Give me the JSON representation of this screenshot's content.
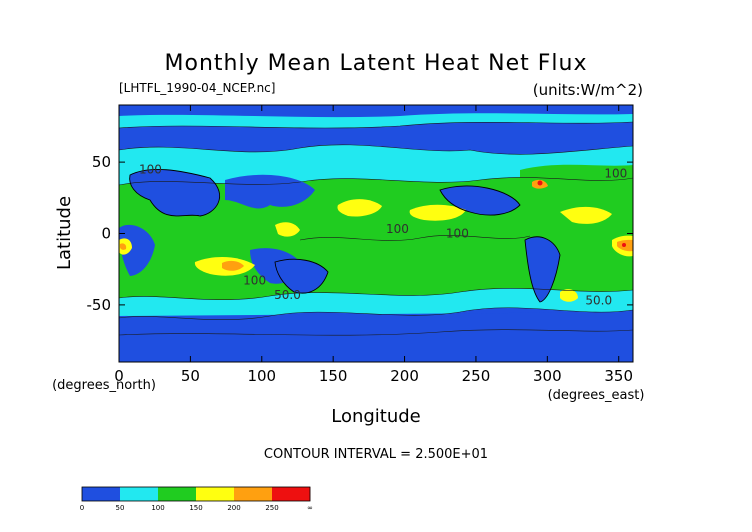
{
  "chart_data": {
    "type": "heatmap",
    "title": "Monthly Mean Latent Heat Net Flux",
    "file_label": "[LHTFL_1990-04_NCEP.nc]",
    "units_label": "(units:W/m^2)",
    "xlabel": "Longitude",
    "ylabel": "Latitude",
    "x_unit_label": "(degrees_east)",
    "y_unit_label": "(degrees_north)",
    "xlim": [
      0,
      360
    ],
    "ylim": [
      -90,
      90
    ],
    "x_ticks": [
      0,
      50,
      100,
      150,
      200,
      250,
      300,
      350
    ],
    "y_ticks": [
      50,
      0,
      -50
    ],
    "contour_interval_text": "CONTOUR INTERVAL = 2.500E+01",
    "contour_labels": [
      {
        "text": "100",
        "lon": 195,
        "lat": 3
      },
      {
        "text": "100",
        "lon": 237,
        "lat": 0
      },
      {
        "text": "100",
        "lon": 95,
        "lat": -33
      },
      {
        "text": "50.0",
        "lon": 118,
        "lat": -43
      },
      {
        "text": "50.0",
        "lon": 336,
        "lat": -47
      },
      {
        "text": "100",
        "lon": 348,
        "lat": 42
      },
      {
        "text": "100",
        "lon": 22,
        "lat": 45
      }
    ],
    "colorbar": {
      "levels": [
        "0",
        "50",
        "100",
        "150",
        "200",
        "250",
        "∞"
      ],
      "colors": [
        "#1f4fe0",
        "#1f4fe0",
        "#22e8f0",
        "#22e8f0",
        "#20cc20",
        "#20cc20",
        "#ffff10",
        "#ffff10",
        "#ffa010",
        "#ffa010",
        "#ee1010",
        "#ee1010"
      ]
    },
    "field_colors": {
      "lt50": "#1f4fe0",
      "50_100": "#22e8f0",
      "100_150": "#20cc20",
      "150_200": "#ffff10",
      "200_250": "#ffa010",
      "gt250": "#ee1010"
    }
  }
}
